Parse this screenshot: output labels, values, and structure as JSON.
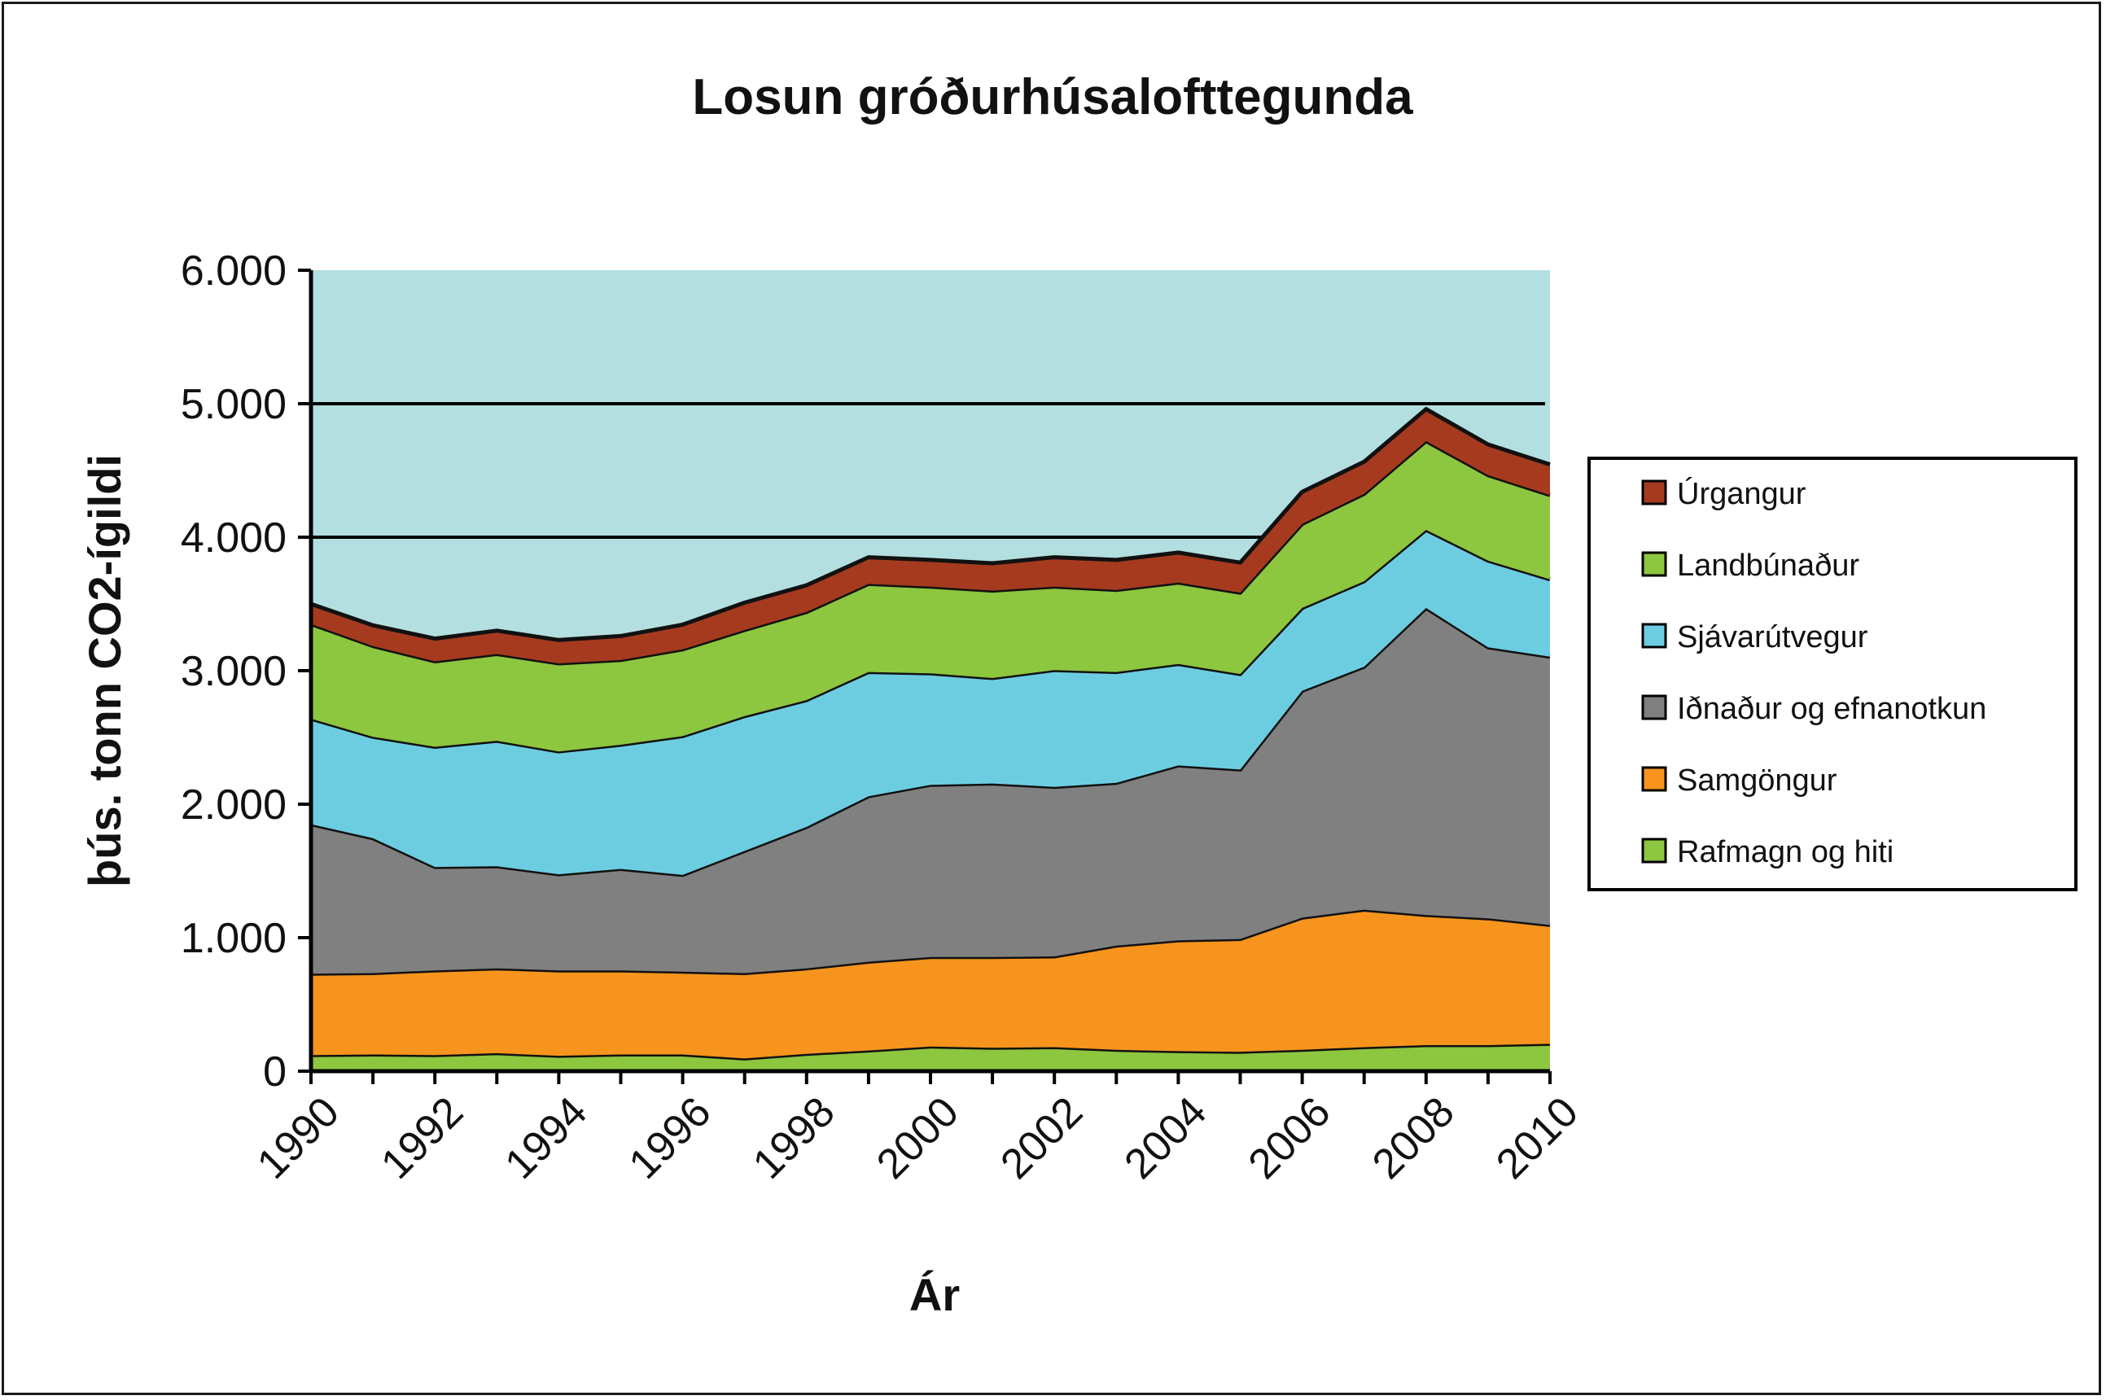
{
  "chart_data": {
    "type": "area",
    "stacked": true,
    "title": "Losun gróðurhúsalofttegunda",
    "xlabel": "Ár",
    "ylabel": "þús. tonn CO2-ígildi",
    "ylim": [
      0,
      6000
    ],
    "yticks": [
      0,
      1000,
      2000,
      3000,
      4000,
      5000,
      6000
    ],
    "ytick_labels": [
      "0",
      "1.000",
      "2.000",
      "3.000",
      "4.000",
      "5.000",
      "6.000"
    ],
    "xtick_labels": [
      "1990",
      "1992",
      "1994",
      "1996",
      "1998",
      "2000",
      "2002",
      "2004",
      "2006",
      "2008",
      "2010"
    ],
    "x": [
      1990,
      1991,
      1992,
      1993,
      1994,
      1995,
      1996,
      1997,
      1998,
      1999,
      2000,
      2001,
      2002,
      2003,
      2004,
      2005,
      2006,
      2007,
      2008,
      2009,
      2010
    ],
    "gridlines": [
      4000,
      5000
    ],
    "legend_position": "right",
    "plot_background": "#b3dfe0",
    "series": [
      {
        "name": "Rafmagn og hiti",
        "color": "#8dc63f",
        "values": [
          120,
          125,
          120,
          135,
          115,
          125,
          125,
          95,
          130,
          155,
          185,
          175,
          180,
          160,
          150,
          145,
          160,
          180,
          195,
          195,
          205
        ]
      },
      {
        "name": "Samgöngur",
        "color": "#f7941d",
        "values": [
          610,
          610,
          635,
          635,
          640,
          630,
          620,
          640,
          640,
          665,
          670,
          680,
          680,
          780,
          830,
          845,
          990,
          1030,
          975,
          950,
          890
        ]
      },
      {
        "name": "Iðnaður og efnanotkun",
        "color": "#808080",
        "values": [
          1120,
          1010,
          775,
          765,
          720,
          760,
          725,
          915,
          1060,
          1240,
          1290,
          1300,
          1270,
          1220,
          1310,
          1270,
          1700,
          1820,
          2300,
          2030,
          2010
        ]
      },
      {
        "name": "Sjávarútvegur",
        "color": "#6dcde0",
        "values": [
          790,
          760,
          900,
          940,
          920,
          930,
          1040,
          1010,
          950,
          930,
          835,
          790,
          875,
          830,
          760,
          715,
          620,
          640,
          585,
          650,
          580
        ]
      },
      {
        "name": "Landbúnaður",
        "color": "#8dc63f",
        "values": [
          710,
          680,
          640,
          650,
          660,
          635,
          650,
          645,
          660,
          660,
          650,
          655,
          625,
          615,
          610,
          610,
          630,
          655,
          665,
          640,
          630
        ]
      },
      {
        "name": "Úrgangur",
        "color": "#a63a1f",
        "values": [
          150,
          155,
          170,
          175,
          175,
          180,
          185,
          205,
          200,
          200,
          200,
          205,
          220,
          225,
          225,
          225,
          240,
          240,
          240,
          230,
          230
        ]
      }
    ]
  }
}
